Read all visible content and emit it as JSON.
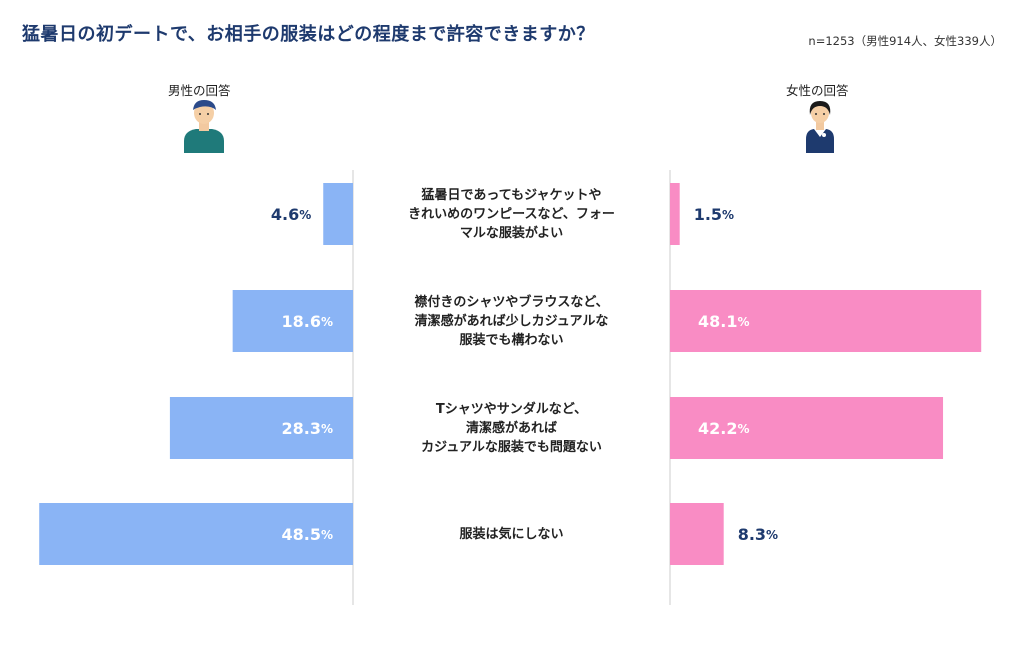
{
  "title": "猛暑日の初デートで、お相手の服装はどの程度まで許容できますか？",
  "sample": "n=1253（男性914人、女性339人）",
  "male_label": "男性の回答",
  "female_label": "女性の回答",
  "colors": {
    "male": "#8ab4f5",
    "female": "#f98cc4",
    "title": "#1e3a6e",
    "value_dark": "#1e3a6e"
  },
  "chart_data": {
    "type": "bar",
    "categories": [
      "猛暑日であってもジャケットや|きれいめのワンピースなど、フォー|マルな服装がよい",
      "襟付きのシャツやブラウスなど、|清潔感があれば少しカジュアルな|服装でも構わない",
      "Tシャツやサンダルなど、|清潔感があれば|カジュアルな服装でも問題ない",
      "服装は気にしない"
    ],
    "series": [
      {
        "name": "男性の回答",
        "values": [
          4.6,
          18.6,
          28.3,
          48.5
        ]
      },
      {
        "name": "女性の回答",
        "values": [
          1.5,
          48.1,
          42.2,
          8.3
        ]
      }
    ],
    "unit": "%",
    "xlim": [
      0,
      50
    ]
  }
}
